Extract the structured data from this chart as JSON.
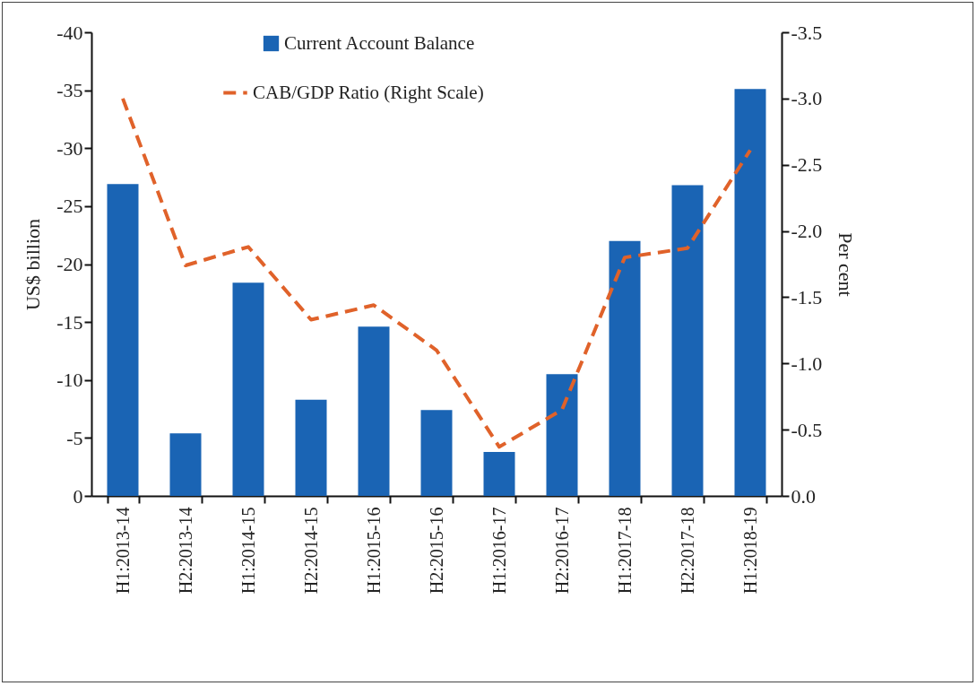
{
  "chart_data": {
    "type": "bar",
    "categories": [
      "H1:2013-14",
      "H2:2013-14",
      "H1:2014-15",
      "H2:2014-15",
      "H1:2015-16",
      "H2:2015-16",
      "H1:2016-17",
      "H2:2016-17",
      "H1:2017-18",
      "H2:2017-18",
      "H1:2018-19"
    ],
    "series": [
      {
        "name": "Current Account Balance",
        "color": "#1a64b4",
        "values": [
          -26.9,
          -5.4,
          -18.4,
          -8.3,
          -14.6,
          -7.4,
          -3.8,
          -10.5,
          -22.0,
          -26.8,
          -35.1
        ]
      },
      {
        "name": "CAB/GDP Ratio (Right Scale)",
        "type": "line",
        "axis": "y2",
        "line_style": "dashed",
        "color": "#e0622a",
        "values": [
          -3.0,
          -1.74,
          -1.88,
          -1.33,
          -1.44,
          -1.1,
          -0.37,
          -0.65,
          -1.8,
          -1.87,
          -2.61
        ]
      }
    ],
    "ylabel": "US$ billion",
    "y2label": "Per cent",
    "ylim": [
      0,
      -40
    ],
    "yticks": [
      0,
      -5,
      -10,
      -15,
      -20,
      -25,
      -30,
      -35,
      -40
    ],
    "y2lim": [
      0,
      -3.5
    ],
    "y2ticks": [
      {
        "value": 0,
        "label": "0.0"
      },
      -0.5,
      {
        "value": -1,
        "label": "-1.0"
      },
      -1.5,
      {
        "value": -2,
        "label": "-2.0"
      },
      -2.5,
      {
        "value": -3,
        "label": "-3.0"
      },
      -3.5
    ],
    "grid": false,
    "legend": "top"
  }
}
